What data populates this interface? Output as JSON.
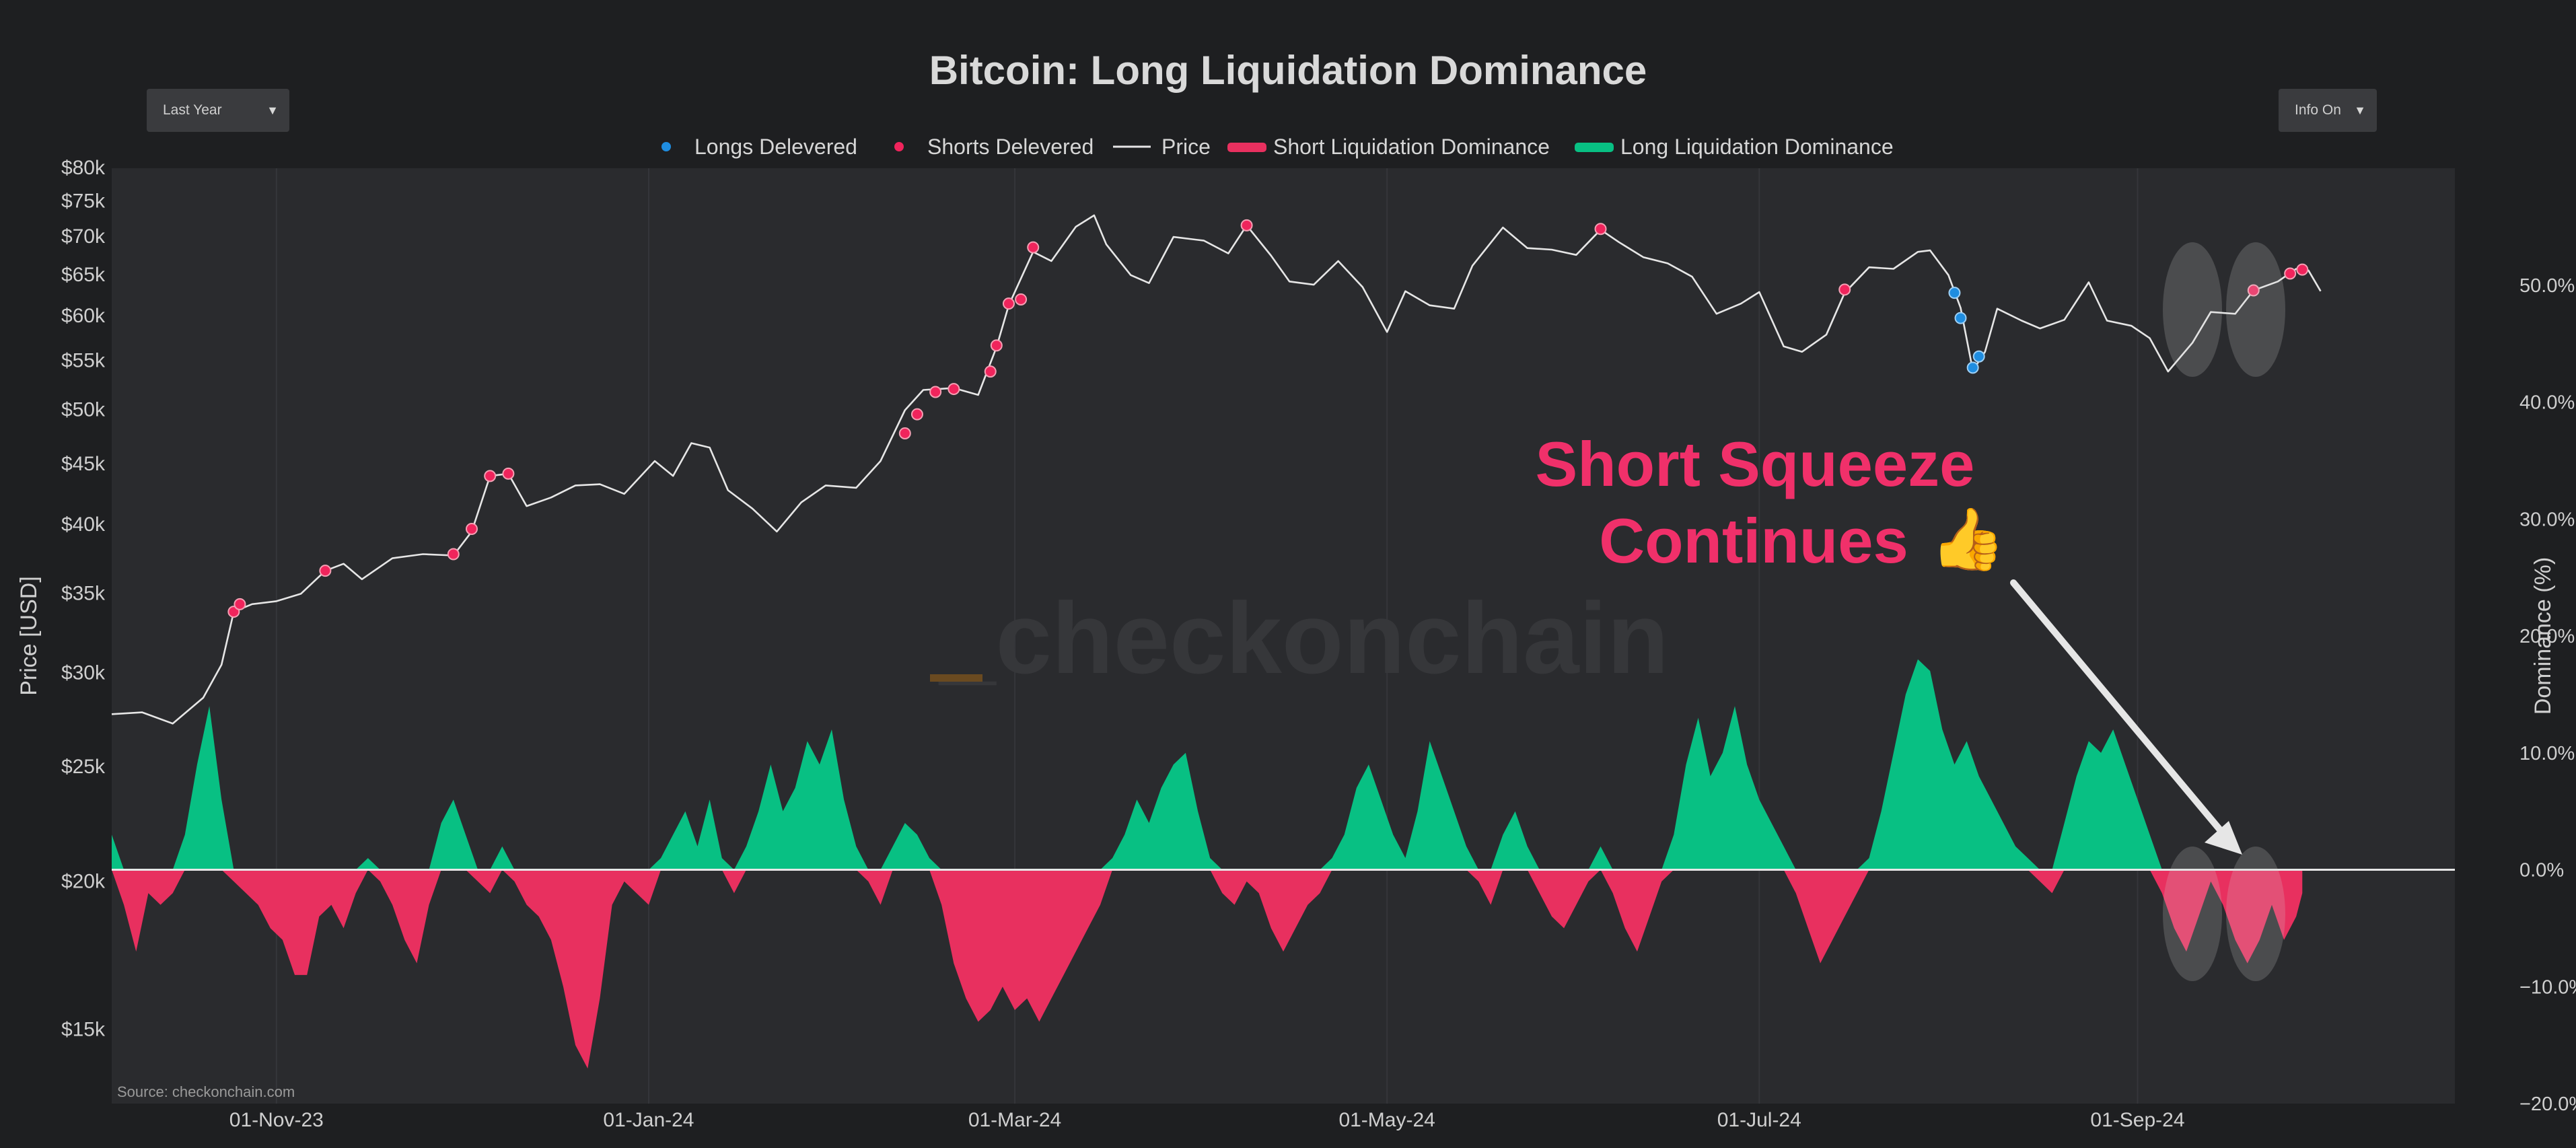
{
  "controls": {
    "range_select": "Last Year",
    "info_select": "Info On"
  },
  "watermark": "_checkonchain",
  "source": "Source: checkonchain.com",
  "annotation": {
    "line1": "Short Squeeze",
    "line2": "Continues",
    "emoji": "👍"
  },
  "colors": {
    "background": "#1e1f21",
    "plot_bg": "#2a2b2e",
    "price": "#e6e6e6",
    "long_dom": "#08c083",
    "short_dom": "#e8305f",
    "longs_marker": "#1f8de0",
    "shorts_marker": "#f0245c",
    "annotation": "#f0306a"
  },
  "chart_data": {
    "type": "line",
    "title": "Bitcoin: Long Liquidation Dominance",
    "legend": {
      "position": "top-center",
      "entries": [
        {
          "label": "Longs Delevered",
          "kind": "dot",
          "color": "#1f8de0"
        },
        {
          "label": "Shorts Delevered",
          "kind": "dot",
          "color": "#f0245c"
        },
        {
          "label": "Price",
          "kind": "line",
          "color": "#e6e6e6"
        },
        {
          "label": "Short Liquidation Dominance",
          "kind": "bar",
          "color": "#e8305f"
        },
        {
          "label": "Long Liquidation Dominance",
          "kind": "bar",
          "color": "#08c083"
        }
      ]
    },
    "xlabel": "",
    "x_range": [
      "2023-10-05",
      "2024-10-23"
    ],
    "x_ticks": [
      {
        "date": "2023-11-01",
        "label": "01-Nov-23"
      },
      {
        "date": "2024-01-01",
        "label": "01-Jan-24"
      },
      {
        "date": "2024-03-01",
        "label": "01-Mar-24"
      },
      {
        "date": "2024-05-01",
        "label": "01-May-24"
      },
      {
        "date": "2024-07-01",
        "label": "01-Jul-24"
      },
      {
        "date": "2024-09-01",
        "label": "01-Sep-24"
      }
    ],
    "y_left": {
      "label": "Price [USD]",
      "scale": "log",
      "range": [
        13000,
        80000
      ],
      "ticks": [
        {
          "v": 15000,
          "label": "$15k"
        },
        {
          "v": 20000,
          "label": "$20k"
        },
        {
          "v": 25000,
          "label": "$25k"
        },
        {
          "v": 30000,
          "label": "$30k"
        },
        {
          "v": 35000,
          "label": "$35k"
        },
        {
          "v": 40000,
          "label": "$40k"
        },
        {
          "v": 45000,
          "label": "$45k"
        },
        {
          "v": 50000,
          "label": "$50k"
        },
        {
          "v": 55000,
          "label": "$55k"
        },
        {
          "v": 60000,
          "label": "$60k"
        },
        {
          "v": 65000,
          "label": "$65k"
        },
        {
          "v": 70000,
          "label": "$70k"
        },
        {
          "v": 75000,
          "label": "$75k"
        },
        {
          "v": 80000,
          "label": "$80k"
        }
      ]
    },
    "y_right": {
      "label": "Dominance (%)",
      "range": [
        -20,
        60
      ],
      "ticks": [
        {
          "v": -20,
          "label": "−20.0%"
        },
        {
          "v": -10,
          "label": "−10.0%"
        },
        {
          "v": 0,
          "label": "0.0%"
        },
        {
          "v": 10,
          "label": "10.0%"
        },
        {
          "v": 20,
          "label": "20.0%"
        },
        {
          "v": 30,
          "label": "30.0%"
        },
        {
          "v": 40,
          "label": "40.0%"
        },
        {
          "v": 50,
          "label": "50.0%"
        }
      ]
    },
    "price_series": [
      [
        "2023-10-05",
        27700
      ],
      [
        "2023-10-10",
        27800
      ],
      [
        "2023-10-15",
        27200
      ],
      [
        "2023-10-20",
        28600
      ],
      [
        "2023-10-23",
        30500
      ],
      [
        "2023-10-25",
        33800
      ],
      [
        "2023-10-28",
        34300
      ],
      [
        "2023-11-01",
        34500
      ],
      [
        "2023-11-05",
        35000
      ],
      [
        "2023-11-09",
        36600
      ],
      [
        "2023-11-12",
        37100
      ],
      [
        "2023-11-15",
        36000
      ],
      [
        "2023-11-20",
        37500
      ],
      [
        "2023-11-25",
        37800
      ],
      [
        "2023-11-30",
        37700
      ],
      [
        "2023-12-03",
        39500
      ],
      [
        "2023-12-06",
        44000
      ],
      [
        "2023-12-09",
        44200
      ],
      [
        "2023-12-12",
        41500
      ],
      [
        "2023-12-16",
        42200
      ],
      [
        "2023-12-20",
        43200
      ],
      [
        "2023-12-24",
        43300
      ],
      [
        "2023-12-28",
        42500
      ],
      [
        "2024-01-02",
        45300
      ],
      [
        "2024-01-05",
        44000
      ],
      [
        "2024-01-08",
        46900
      ],
      [
        "2024-01-11",
        46500
      ],
      [
        "2024-01-14",
        42800
      ],
      [
        "2024-01-18",
        41300
      ],
      [
        "2024-01-22",
        39500
      ],
      [
        "2024-01-26",
        41800
      ],
      [
        "2024-01-30",
        43200
      ],
      [
        "2024-02-04",
        43000
      ],
      [
        "2024-02-08",
        45300
      ],
      [
        "2024-02-12",
        50000
      ],
      [
        "2024-02-15",
        52000
      ],
      [
        "2024-02-20",
        52200
      ],
      [
        "2024-02-24",
        51500
      ],
      [
        "2024-02-27",
        56500
      ],
      [
        "2024-02-29",
        61300
      ],
      [
        "2024-03-04",
        68000
      ],
      [
        "2024-03-07",
        66800
      ],
      [
        "2024-03-11",
        71400
      ],
      [
        "2024-03-14",
        73000
      ],
      [
        "2024-03-16",
        69000
      ],
      [
        "2024-03-20",
        65000
      ],
      [
        "2024-03-23",
        64000
      ],
      [
        "2024-03-27",
        70000
      ],
      [
        "2024-04-01",
        69500
      ],
      [
        "2024-04-05",
        67800
      ],
      [
        "2024-04-08",
        71600
      ],
      [
        "2024-04-12",
        67500
      ],
      [
        "2024-04-15",
        64200
      ],
      [
        "2024-04-19",
        63800
      ],
      [
        "2024-04-23",
        66800
      ],
      [
        "2024-04-27",
        63500
      ],
      [
        "2024-05-01",
        58200
      ],
      [
        "2024-05-04",
        63000
      ],
      [
        "2024-05-08",
        61300
      ],
      [
        "2024-05-12",
        60900
      ],
      [
        "2024-05-15",
        66200
      ],
      [
        "2024-05-20",
        71300
      ],
      [
        "2024-05-24",
        68500
      ],
      [
        "2024-05-28",
        68300
      ],
      [
        "2024-06-01",
        67600
      ],
      [
        "2024-06-05",
        71000
      ],
      [
        "2024-06-08",
        69300
      ],
      [
        "2024-06-12",
        67300
      ],
      [
        "2024-06-16",
        66500
      ],
      [
        "2024-06-20",
        64800
      ],
      [
        "2024-06-24",
        60300
      ],
      [
        "2024-06-28",
        61500
      ],
      [
        "2024-07-01",
        62900
      ],
      [
        "2024-07-05",
        56600
      ],
      [
        "2024-07-08",
        56000
      ],
      [
        "2024-07-12",
        57900
      ],
      [
        "2024-07-15",
        62800
      ],
      [
        "2024-07-19",
        66000
      ],
      [
        "2024-07-23",
        65800
      ],
      [
        "2024-07-27",
        68000
      ],
      [
        "2024-07-29",
        68200
      ],
      [
        "2024-08-01",
        65000
      ],
      [
        "2024-08-03",
        61000
      ],
      [
        "2024-08-05",
        54000
      ],
      [
        "2024-08-07",
        56000
      ],
      [
        "2024-08-09",
        60900
      ],
      [
        "2024-08-13",
        59500
      ],
      [
        "2024-08-16",
        58600
      ],
      [
        "2024-08-20",
        59600
      ],
      [
        "2024-08-24",
        64100
      ],
      [
        "2024-08-27",
        59500
      ],
      [
        "2024-08-31",
        58900
      ],
      [
        "2024-09-03",
        57500
      ],
      [
        "2024-09-06",
        53900
      ],
      [
        "2024-09-10",
        57000
      ],
      [
        "2024-09-13",
        60500
      ],
      [
        "2024-09-17",
        60300
      ],
      [
        "2024-09-20",
        63100
      ],
      [
        "2024-09-24",
        64200
      ],
      [
        "2024-09-27",
        65800
      ],
      [
        "2024-09-29",
        65600
      ],
      [
        "2024-10-01",
        63000
      ]
    ],
    "dominance_series": [
      [
        "2023-10-05",
        3
      ],
      [
        "2023-10-07",
        -3
      ],
      [
        "2023-10-09",
        -7
      ],
      [
        "2023-10-11",
        -2
      ],
      [
        "2023-10-13",
        -3
      ],
      [
        "2023-10-15",
        -2
      ],
      [
        "2023-10-17",
        3
      ],
      [
        "2023-10-19",
        9
      ],
      [
        "2023-10-21",
        14
      ],
      [
        "2023-10-23",
        6
      ],
      [
        "2023-10-25",
        -1
      ],
      [
        "2023-10-27",
        -2
      ],
      [
        "2023-10-29",
        -3
      ],
      [
        "2023-10-31",
        -5
      ],
      [
        "2023-11-02",
        -6
      ],
      [
        "2023-11-04",
        -9
      ],
      [
        "2023-11-06",
        -9
      ],
      [
        "2023-11-08",
        -4
      ],
      [
        "2023-11-10",
        -3
      ],
      [
        "2023-11-12",
        -5
      ],
      [
        "2023-11-14",
        -2
      ],
      [
        "2023-11-16",
        1
      ],
      [
        "2023-11-18",
        -1
      ],
      [
        "2023-11-20",
        -3
      ],
      [
        "2023-11-22",
        -6
      ],
      [
        "2023-11-24",
        -8
      ],
      [
        "2023-11-26",
        -3
      ],
      [
        "2023-11-28",
        4
      ],
      [
        "2023-11-30",
        6
      ],
      [
        "2023-12-02",
        3
      ],
      [
        "2023-12-04",
        -1
      ],
      [
        "2023-12-06",
        -2
      ],
      [
        "2023-12-08",
        2
      ],
      [
        "2023-12-10",
        -1
      ],
      [
        "2023-12-12",
        -3
      ],
      [
        "2023-12-14",
        -4
      ],
      [
        "2023-12-16",
        -6
      ],
      [
        "2023-12-18",
        -10
      ],
      [
        "2023-12-20",
        -15
      ],
      [
        "2023-12-22",
        -17
      ],
      [
        "2023-12-24",
        -11
      ],
      [
        "2023-12-26",
        -3
      ],
      [
        "2023-12-28",
        -1
      ],
      [
        "2023-12-30",
        -2
      ],
      [
        "2024-01-01",
        -3
      ],
      [
        "2024-01-03",
        1
      ],
      [
        "2024-01-05",
        3
      ],
      [
        "2024-01-07",
        5
      ],
      [
        "2024-01-09",
        2
      ],
      [
        "2024-01-11",
        6
      ],
      [
        "2024-01-13",
        1
      ],
      [
        "2024-01-15",
        -2
      ],
      [
        "2024-01-17",
        2
      ],
      [
        "2024-01-19",
        5
      ],
      [
        "2024-01-21",
        9
      ],
      [
        "2024-01-23",
        5
      ],
      [
        "2024-01-25",
        7
      ],
      [
        "2024-01-27",
        11
      ],
      [
        "2024-01-29",
        9
      ],
      [
        "2024-01-31",
        12
      ],
      [
        "2024-02-02",
        6
      ],
      [
        "2024-02-04",
        2
      ],
      [
        "2024-02-06",
        -1
      ],
      [
        "2024-02-08",
        -3
      ],
      [
        "2024-02-10",
        2
      ],
      [
        "2024-02-12",
        4
      ],
      [
        "2024-02-14",
        3
      ],
      [
        "2024-02-16",
        1
      ],
      [
        "2024-02-18",
        -3
      ],
      [
        "2024-02-20",
        -8
      ],
      [
        "2024-02-22",
        -11
      ],
      [
        "2024-02-24",
        -13
      ],
      [
        "2024-02-26",
        -12
      ],
      [
        "2024-02-28",
        -10
      ],
      [
        "2024-03-01",
        -12
      ],
      [
        "2024-03-03",
        -11
      ],
      [
        "2024-03-05",
        -13
      ],
      [
        "2024-03-07",
        -11
      ],
      [
        "2024-03-09",
        -9
      ],
      [
        "2024-03-11",
        -7
      ],
      [
        "2024-03-13",
        -5
      ],
      [
        "2024-03-15",
        -3
      ],
      [
        "2024-03-17",
        1
      ],
      [
        "2024-03-19",
        3
      ],
      [
        "2024-03-21",
        6
      ],
      [
        "2024-03-23",
        4
      ],
      [
        "2024-03-25",
        7
      ],
      [
        "2024-03-27",
        9
      ],
      [
        "2024-03-29",
        10
      ],
      [
        "2024-03-31",
        5
      ],
      [
        "2024-04-02",
        1
      ],
      [
        "2024-04-04",
        -2
      ],
      [
        "2024-04-06",
        -3
      ],
      [
        "2024-04-08",
        -1
      ],
      [
        "2024-04-10",
        -2
      ],
      [
        "2024-04-12",
        -5
      ],
      [
        "2024-04-14",
        -7
      ],
      [
        "2024-04-16",
        -5
      ],
      [
        "2024-04-18",
        -3
      ],
      [
        "2024-04-20",
        -2
      ],
      [
        "2024-04-22",
        1
      ],
      [
        "2024-04-24",
        3
      ],
      [
        "2024-04-26",
        7
      ],
      [
        "2024-04-28",
        9
      ],
      [
        "2024-04-30",
        6
      ],
      [
        "2024-05-02",
        3
      ],
      [
        "2024-05-04",
        1
      ],
      [
        "2024-05-06",
        5
      ],
      [
        "2024-05-08",
        11
      ],
      [
        "2024-05-10",
        8
      ],
      [
        "2024-05-12",
        5
      ],
      [
        "2024-05-14",
        2
      ],
      [
        "2024-05-16",
        -1
      ],
      [
        "2024-05-18",
        -3
      ],
      [
        "2024-05-20",
        3
      ],
      [
        "2024-05-22",
        5
      ],
      [
        "2024-05-24",
        2
      ],
      [
        "2024-05-26",
        -2
      ],
      [
        "2024-05-28",
        -4
      ],
      [
        "2024-05-30",
        -5
      ],
      [
        "2024-06-01",
        -3
      ],
      [
        "2024-06-03",
        -1
      ],
      [
        "2024-06-05",
        2
      ],
      [
        "2024-06-07",
        -2
      ],
      [
        "2024-06-09",
        -5
      ],
      [
        "2024-06-11",
        -7
      ],
      [
        "2024-06-13",
        -4
      ],
      [
        "2024-06-15",
        -1
      ],
      [
        "2024-06-17",
        3
      ],
      [
        "2024-06-19",
        9
      ],
      [
        "2024-06-21",
        13
      ],
      [
        "2024-06-23",
        8
      ],
      [
        "2024-06-25",
        10
      ],
      [
        "2024-06-27",
        14
      ],
      [
        "2024-06-29",
        9
      ],
      [
        "2024-07-01",
        6
      ],
      [
        "2024-07-03",
        4
      ],
      [
        "2024-07-05",
        2
      ],
      [
        "2024-07-07",
        -2
      ],
      [
        "2024-07-09",
        -5
      ],
      [
        "2024-07-11",
        -8
      ],
      [
        "2024-07-13",
        -6
      ],
      [
        "2024-07-15",
        -4
      ],
      [
        "2024-07-17",
        -2
      ],
      [
        "2024-07-19",
        1
      ],
      [
        "2024-07-21",
        5
      ],
      [
        "2024-07-23",
        10
      ],
      [
        "2024-07-25",
        15
      ],
      [
        "2024-07-27",
        18
      ],
      [
        "2024-07-29",
        17
      ],
      [
        "2024-07-31",
        12
      ],
      [
        "2024-08-02",
        9
      ],
      [
        "2024-08-04",
        11
      ],
      [
        "2024-08-06",
        8
      ],
      [
        "2024-08-08",
        6
      ],
      [
        "2024-08-10",
        4
      ],
      [
        "2024-08-12",
        2
      ],
      [
        "2024-08-14",
        1
      ],
      [
        "2024-08-16",
        -1
      ],
      [
        "2024-08-18",
        -2
      ],
      [
        "2024-08-20",
        4
      ],
      [
        "2024-08-22",
        8
      ],
      [
        "2024-08-24",
        11
      ],
      [
        "2024-08-26",
        10
      ],
      [
        "2024-08-28",
        12
      ],
      [
        "2024-08-30",
        9
      ],
      [
        "2024-09-01",
        6
      ],
      [
        "2024-09-03",
        3
      ],
      [
        "2024-09-05",
        -2
      ],
      [
        "2024-09-07",
        -5
      ],
      [
        "2024-09-09",
        -7
      ],
      [
        "2024-09-11",
        -4
      ],
      [
        "2024-09-13",
        -1
      ],
      [
        "2024-09-15",
        -3
      ],
      [
        "2024-09-17",
        -6
      ],
      [
        "2024-09-19",
        -8
      ],
      [
        "2024-09-21",
        -6
      ],
      [
        "2024-09-23",
        -3
      ],
      [
        "2024-09-25",
        -6
      ],
      [
        "2024-09-27",
        -4
      ],
      [
        "2024-09-28",
        -2
      ]
    ],
    "shorts_delevered": [
      [
        "2023-10-25",
        33800
      ],
      [
        "2023-10-26",
        34300
      ],
      [
        "2023-11-09",
        36600
      ],
      [
        "2023-11-30",
        37800
      ],
      [
        "2023-12-03",
        39700
      ],
      [
        "2023-12-06",
        44000
      ],
      [
        "2023-12-09",
        44200
      ],
      [
        "2024-02-12",
        47800
      ],
      [
        "2024-02-14",
        49600
      ],
      [
        "2024-02-17",
        51800
      ],
      [
        "2024-02-20",
        52100
      ],
      [
        "2024-02-26",
        53900
      ],
      [
        "2024-02-27",
        56700
      ],
      [
        "2024-02-29",
        61500
      ],
      [
        "2024-03-02",
        62000
      ],
      [
        "2024-03-04",
        68600
      ],
      [
        "2024-04-08",
        71600
      ],
      [
        "2024-06-05",
        71100
      ],
      [
        "2024-07-15",
        63200
      ],
      [
        "2024-09-20",
        63100
      ],
      [
        "2024-09-26",
        65200
      ],
      [
        "2024-09-28",
        65700
      ]
    ],
    "longs_delevered": [
      [
        "2024-08-02",
        62800
      ],
      [
        "2024-08-03",
        59800
      ],
      [
        "2024-08-05",
        54300
      ],
      [
        "2024-08-06",
        55500
      ]
    ]
  }
}
